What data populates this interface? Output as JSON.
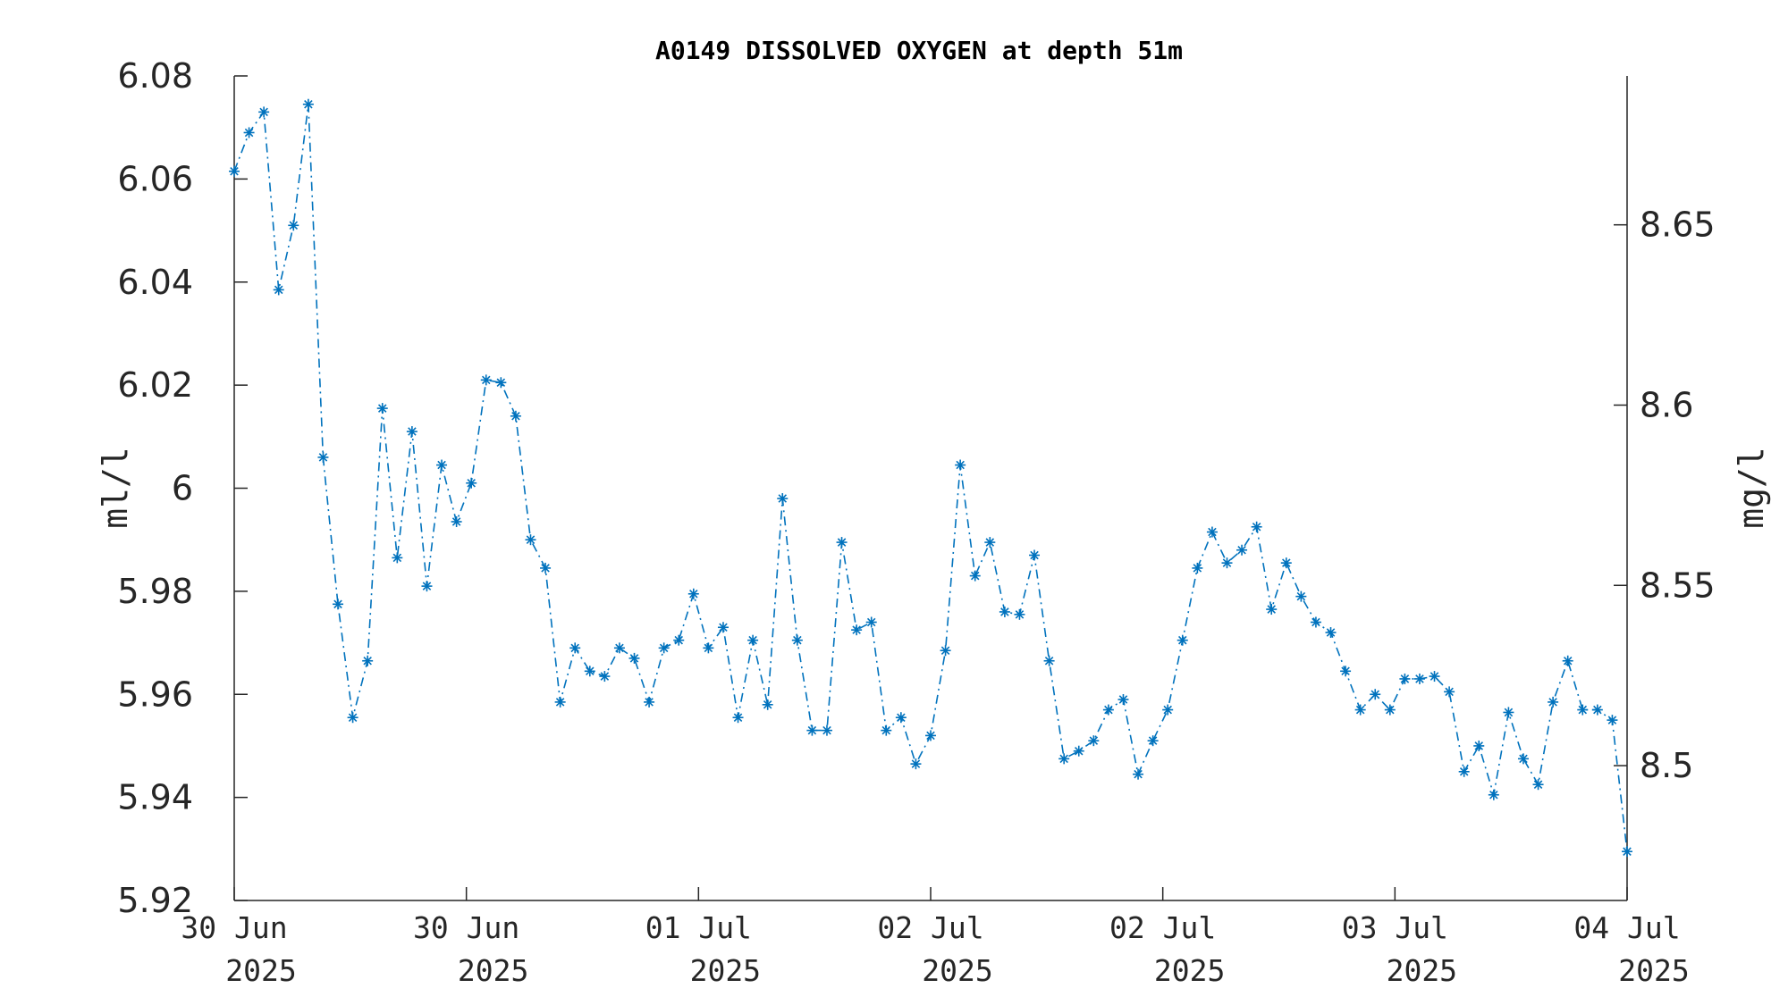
{
  "chart_data": {
    "type": "line",
    "title": "A0149 DISSOLVED OXYGEN at depth 51m",
    "ylabel": "ml/l",
    "ylabel_right": "mg/l",
    "xlabel": "",
    "ylim": [
      5.92,
      6.08
    ],
    "ylim_right": [
      8.4626,
      8.6913
    ],
    "yticks": [
      "6.08",
      "6.06",
      "6.04",
      "6.02",
      "6",
      "5.98",
      "5.96",
      "5.94",
      "5.92"
    ],
    "yticks_right": [
      "8.65",
      "8.6",
      "8.55",
      "8.5"
    ],
    "xticks": [
      {
        "day": "30 Jun",
        "year": "2025"
      },
      {
        "day": "30 Jun",
        "year": "2025"
      },
      {
        "day": "01 Jul",
        "year": "2025"
      },
      {
        "day": "02 Jul",
        "year": "2025"
      },
      {
        "day": "02 Jul",
        "year": "2025"
      },
      {
        "day": "03 Jul",
        "year": "2025"
      },
      {
        "day": "04 Jul",
        "year": "2025"
      }
    ],
    "grid": false,
    "marker": "asterisk",
    "line_style": "dash-dot",
    "color": "#0072BD",
    "series": [
      {
        "values": [
          6.0615,
          6.069,
          6.073,
          6.0385,
          6.051,
          6.0745,
          6.006,
          5.9775,
          5.9555,
          5.9665,
          6.0155,
          5.9865,
          6.011,
          5.981,
          6.0045,
          5.9935,
          6.001,
          6.021,
          6.0205,
          6.014,
          5.99,
          5.9845,
          5.9585,
          5.969,
          5.9645,
          5.9635,
          5.969,
          5.967,
          5.9585,
          5.969,
          5.9705,
          5.9795,
          5.969,
          5.973,
          5.9555,
          5.9705,
          5.958,
          5.998,
          5.9705,
          5.953,
          5.953,
          5.9895,
          5.9725,
          5.974,
          5.953,
          5.9555,
          5.9465,
          5.952,
          5.9685,
          6.0045,
          5.983,
          5.9895,
          5.976,
          5.9755,
          5.987,
          5.9665,
          5.9475,
          5.949,
          5.951,
          5.957,
          5.959,
          5.9445,
          5.951,
          5.957,
          5.9705,
          5.9845,
          5.9915,
          5.9855,
          5.988,
          5.9925,
          5.9765,
          5.9855,
          5.979,
          5.974,
          5.972,
          5.9645,
          5.957,
          5.96,
          5.957,
          5.963,
          5.963,
          5.9635,
          5.9605,
          5.945,
          5.95,
          5.9405,
          5.9565,
          5.9475,
          5.9425,
          5.9585,
          5.9665,
          5.957,
          5.957,
          5.955,
          5.9295
        ]
      }
    ]
  }
}
